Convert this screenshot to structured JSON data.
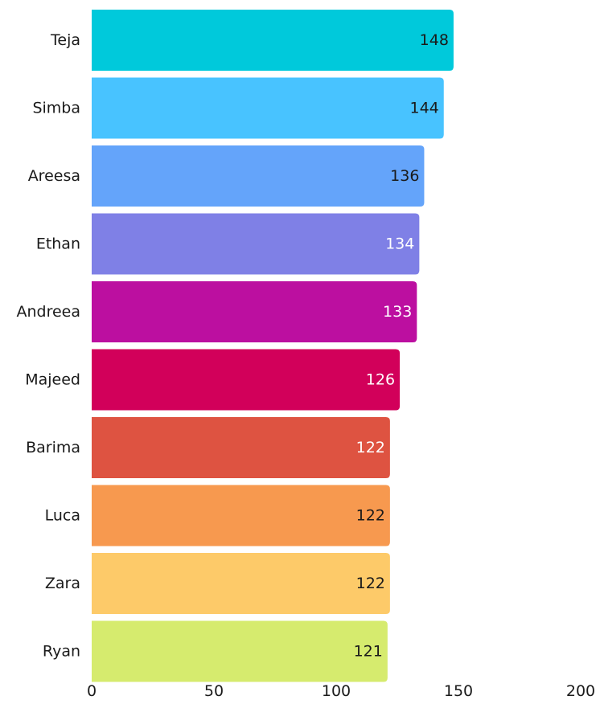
{
  "chart_data": {
    "type": "bar",
    "orientation": "horizontal",
    "categories": [
      "Teja",
      "Simba",
      "Areesa",
      "Ethan",
      "Andreea",
      "Majeed",
      "Barima",
      "Luca",
      "Zara",
      "Ryan"
    ],
    "values": [
      148,
      144,
      136,
      134,
      133,
      126,
      122,
      122,
      122,
      121
    ],
    "colors": [
      "#00c9db",
      "#48c3ff",
      "#64a4fa",
      "#7f80e6",
      "#bc0fa0",
      "#d2005a",
      "#de5341",
      "#f7994f",
      "#fdca69",
      "#d6eb6e"
    ],
    "value_label_colors": [
      "#1a1a1a",
      "#1a1a1a",
      "#1a1a1a",
      "#ffffff",
      "#ffffff",
      "#ffffff",
      "#ffffff",
      "#1a1a1a",
      "#1a1a1a",
      "#1a1a1a"
    ],
    "xlim": [
      0,
      200
    ],
    "xticks": [
      0,
      50,
      100,
      150,
      200
    ],
    "title": "",
    "xlabel": "",
    "ylabel": "",
    "grid": false,
    "legend": "none"
  }
}
